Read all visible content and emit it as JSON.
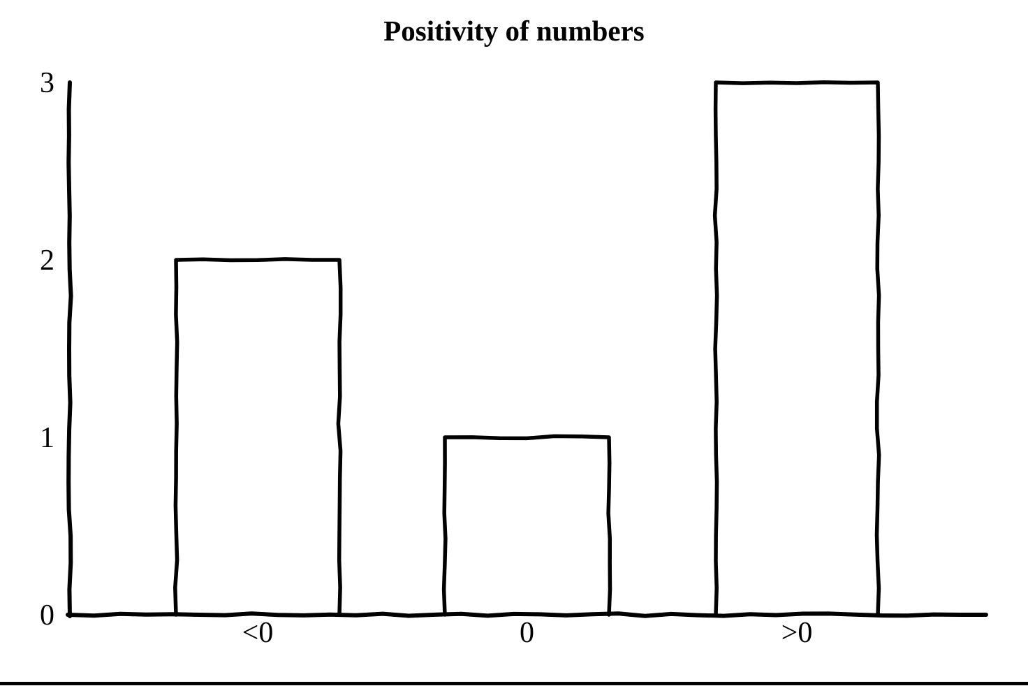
{
  "page": {
    "background": "#ffffff",
    "ink": "#000000"
  },
  "chart_data": {
    "type": "bar",
    "title": "Positivity of numbers",
    "categories": [
      "<0",
      "0",
      ">0"
    ],
    "values": [
      2,
      1,
      3
    ],
    "xlabel": "",
    "ylabel": "",
    "yticks": [
      0,
      1,
      2,
      3
    ],
    "ylim": [
      0,
      3
    ],
    "grid": false,
    "legend_position": "none",
    "style": "hand-drawn-monochrome",
    "bar_fill": "none",
    "bar_outline": "#000000"
  }
}
